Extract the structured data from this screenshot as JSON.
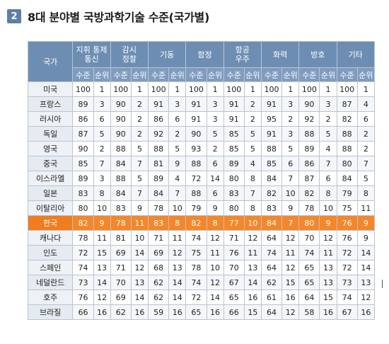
{
  "title": {
    "number": "2",
    "text": "8대 분야별 국방과학기술 수준(국가별)"
  },
  "table": {
    "country_header": "국가",
    "fields": [
      "지휘 통제\n통신",
      "감시\n정찰",
      "기동",
      "함정",
      "항공\n우주",
      "화력",
      "방호",
      "기타"
    ],
    "sub_headers": [
      "수준",
      "순위"
    ],
    "rows": [
      {
        "country": "미국",
        "values": [
          "100",
          "1",
          "100",
          "1",
          "100",
          "1",
          "100",
          "1",
          "100",
          "1",
          "100",
          "1",
          "100",
          "1",
          "100",
          "1"
        ]
      },
      {
        "country": "프랑스",
        "values": [
          "89",
          "3",
          "90",
          "2",
          "91",
          "3",
          "91",
          "3",
          "91",
          "2",
          "91",
          "3",
          "90",
          "3",
          "87",
          "4"
        ]
      },
      {
        "country": "러시아",
        "values": [
          "86",
          "6",
          "90",
          "2",
          "86",
          "6",
          "91",
          "3",
          "91",
          "2",
          "95",
          "2",
          "92",
          "2",
          "82",
          "6"
        ]
      },
      {
        "country": "독일",
        "values": [
          "87",
          "5",
          "90",
          "2",
          "92",
          "2",
          "90",
          "5",
          "85",
          "5",
          "91",
          "3",
          "88",
          "5",
          "88",
          "2"
        ]
      },
      {
        "country": "영국",
        "values": [
          "90",
          "2",
          "88",
          "5",
          "88",
          "5",
          "93",
          "2",
          "85",
          "5",
          "88",
          "5",
          "89",
          "4",
          "88",
          "2"
        ]
      },
      {
        "country": "중국",
        "values": [
          "85",
          "7",
          "84",
          "7",
          "81",
          "9",
          "88",
          "6",
          "89",
          "4",
          "85",
          "6",
          "86",
          "7",
          "80",
          "7"
        ]
      },
      {
        "country": "이스라엘",
        "values": [
          "89",
          "3",
          "88",
          "5",
          "89",
          "4",
          "72",
          "14",
          "80",
          "8",
          "84",
          "7",
          "87",
          "6",
          "84",
          "5"
        ]
      },
      {
        "country": "일본",
        "values": [
          "83",
          "8",
          "84",
          "7",
          "84",
          "7",
          "88",
          "6",
          "83",
          "7",
          "82",
          "10",
          "82",
          "8",
          "79",
          "8"
        ]
      },
      {
        "country": "이탈리아",
        "values": [
          "80",
          "10",
          "83",
          "9",
          "78",
          "10",
          "79",
          "9",
          "80",
          "8",
          "83",
          "9",
          "78",
          "10",
          "75",
          "11"
        ]
      },
      {
        "country": "한국",
        "values": [
          "82",
          "9",
          "78",
          "11",
          "83",
          "8",
          "82",
          "8",
          "77",
          "10",
          "84",
          "7",
          "80",
          "9",
          "76",
          "9"
        ],
        "highlight": true
      },
      {
        "country": "캐나다",
        "values": [
          "78",
          "11",
          "81",
          "10",
          "71",
          "11",
          "74",
          "12",
          "71",
          "12",
          "64",
          "12",
          "70",
          "12",
          "76",
          "9"
        ]
      },
      {
        "country": "인도",
        "values": [
          "72",
          "15",
          "69",
          "14",
          "69",
          "12",
          "75",
          "11",
          "76",
          "11",
          "74",
          "11",
          "74",
          "11",
          "72",
          "14"
        ]
      },
      {
        "country": "스페인",
        "values": [
          "74",
          "13",
          "71",
          "12",
          "68",
          "13",
          "78",
          "10",
          "70",
          "13",
          "64",
          "12",
          "65",
          "13",
          "72",
          "14"
        ]
      },
      {
        "country": "네덜란드",
        "values": [
          "73",
          "14",
          "70",
          "13",
          "62",
          "14",
          "74",
          "12",
          "67",
          "14",
          "62",
          "15",
          "65",
          "13",
          "73",
          "13"
        ]
      },
      {
        "country": "호주",
        "values": [
          "76",
          "12",
          "69",
          "14",
          "62",
          "14",
          "72",
          "14",
          "65",
          "16",
          "61",
          "16",
          "64",
          "15",
          "74",
          "12"
        ]
      },
      {
        "country": "브라질",
        "values": [
          "66",
          "16",
          "62",
          "16",
          "59",
          "16",
          "65",
          "16",
          "66",
          "15",
          "64",
          "12",
          "58",
          "16",
          "67",
          "16"
        ]
      }
    ]
  },
  "colors": {
    "header_bg": "#6d8db3",
    "subheader_bg": "#7f9cc0",
    "highlight_bg": "#f5872a",
    "badge_bg": "#5b7fa6"
  }
}
